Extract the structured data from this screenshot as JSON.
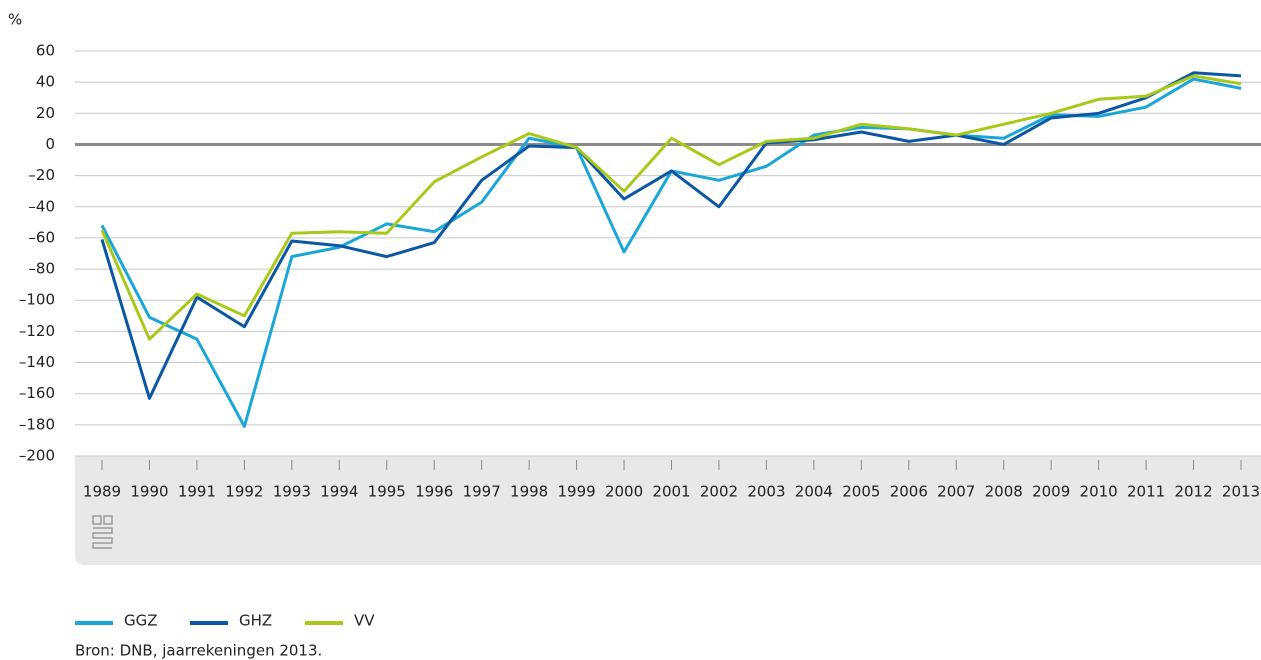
{
  "chart_data": {
    "type": "line",
    "y_label": "%",
    "source": "Bron: DNB, jaarrekeningen 2013.",
    "categories": [
      "1989",
      "1990",
      "1991",
      "1992",
      "1993",
      "1994",
      "1995",
      "1996",
      "1997",
      "1998",
      "1999",
      "2000",
      "2001",
      "2002",
      "2003",
      "2004",
      "2005",
      "2006",
      "2007",
      "2008",
      "2009",
      "2010",
      "2011",
      "2012",
      "2013"
    ],
    "series": [
      {
        "name": "GGZ",
        "color": "#1aa7d8",
        "values": [
          -52,
          -111,
          -125,
          -181,
          -72,
          -66,
          -51,
          -56,
          -37,
          4,
          -2,
          -69,
          -17,
          -23,
          -14,
          6,
          11,
          10,
          6,
          4,
          19,
          18,
          24,
          42,
          36
        ]
      },
      {
        "name": "GHZ",
        "color": "#0b57a4",
        "values": [
          -61,
          -163,
          -98,
          -117,
          -62,
          -65,
          -72,
          -63,
          -23,
          -1,
          -2,
          -35,
          -17,
          -40,
          1,
          3,
          8,
          2,
          6,
          0,
          17,
          20,
          30,
          46,
          44
        ]
      },
      {
        "name": "VV",
        "color": "#a9c91a",
        "values": [
          -55,
          -125,
          -96,
          -110,
          -57,
          -56,
          -57,
          -24,
          -8,
          7,
          -2,
          -30,
          4,
          -13,
          2,
          4,
          13,
          10,
          6,
          13,
          20,
          29,
          31,
          44,
          39
        ]
      }
    ],
    "ylim": [
      -200,
      60
    ],
    "yticks": [
      60,
      40,
      20,
      0,
      {
        "value": -20,
        "label": "–20"
      },
      {
        "value": -40,
        "label": "–40"
      },
      {
        "value": -60,
        "label": "–60"
      },
      {
        "value": -80,
        "label": "–80"
      },
      {
        "value": -100,
        "label": "–100"
      },
      {
        "value": -120,
        "label": "–120"
      },
      {
        "value": -140,
        "label": "–140"
      },
      {
        "value": -160,
        "label": "–160"
      },
      {
        "value": -180,
        "label": "–180"
      },
      {
        "value": -200,
        "label": "–200"
      }
    ],
    "grid": true
  }
}
